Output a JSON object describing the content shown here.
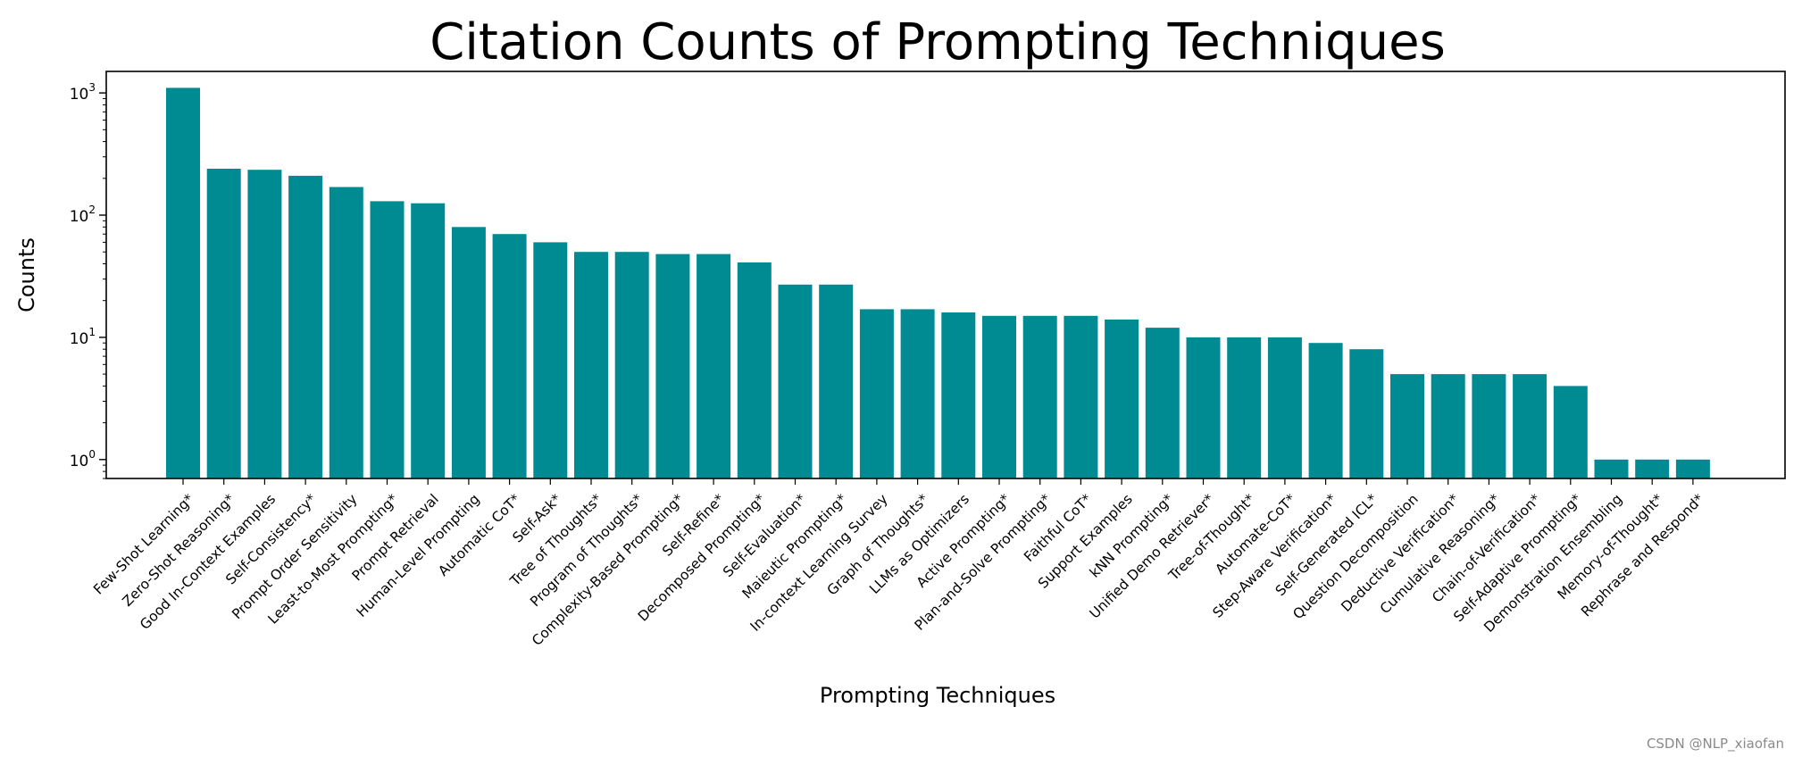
{
  "watermark": "CSDN @NLP_xiaofan",
  "chart_data": {
    "type": "bar",
    "title": "Citation Counts of Prompting Techniques",
    "xlabel": "Prompting Techniques",
    "ylabel": "Counts",
    "yscale": "log",
    "ylim": [
      0.7,
      1500
    ],
    "yticks": [
      1,
      10,
      100,
      1000
    ],
    "ytick_labels": [
      {
        "base": "10",
        "exp": "0"
      },
      {
        "base": "10",
        "exp": "1"
      },
      {
        "base": "10",
        "exp": "2"
      },
      {
        "base": "10",
        "exp": "3"
      }
    ],
    "color": "#008b92",
    "grid": false,
    "categories": [
      "Few-Shot Learning*",
      "Zero-Shot Reasoning*",
      "Good In-Context Examples",
      "Self-Consistency*",
      "Prompt Order Sensitivity",
      "Least-to-Most Prompting*",
      "Prompt Retrieval",
      "Human-Level Prompting",
      "Automatic CoT*",
      "Self-Ask*",
      "Tree of Thoughts*",
      "Program of Thoughts*",
      "Complexity-Based Prompting*",
      "Self-Refine*",
      "Decomposed Prompting*",
      "Self-Evaluation*",
      "Maieutic Prompting*",
      "In-context Learning Survey",
      "Graph of Thoughts*",
      "LLMs as Optimizers",
      "Active Prompting*",
      "Plan-and-Solve Prompting*",
      "Faithful CoT*",
      "Support Examples",
      "kNN Prompting*",
      "Unified Demo Retriever*",
      "Tree-of-Thought*",
      "Automate-CoT*",
      "Step-Aware Verification*",
      "Self-Generated ICL*",
      "Question Decomposition",
      "Deductive Verification*",
      "Cumulative Reasoning*",
      "Chain-of-Verification*",
      "Self-Adaptive Prompting*",
      "Demonstration Ensembling",
      "Memory-of-Thought*",
      "Rephrase and Respond*"
    ],
    "values": [
      1100,
      240,
      235,
      210,
      170,
      130,
      125,
      80,
      70,
      60,
      50,
      50,
      48,
      48,
      41,
      27,
      27,
      17,
      17,
      16,
      15,
      15,
      15,
      14,
      12,
      10,
      10,
      10,
      9,
      8,
      5,
      5,
      5,
      5,
      4,
      1,
      1,
      1
    ]
  }
}
